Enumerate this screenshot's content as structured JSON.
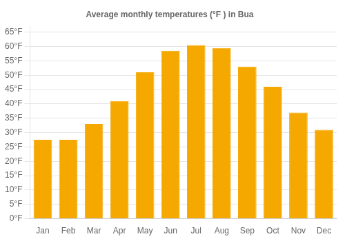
{
  "chart_data": {
    "type": "bar",
    "title": "Average monthly temperatures (°F ) in Bua",
    "categories": [
      "Jan",
      "Feb",
      "Mar",
      "Apr",
      "May",
      "Jun",
      "Jul",
      "Aug",
      "Sep",
      "Oct",
      "Nov",
      "Dec"
    ],
    "values": [
      27.5,
      27.5,
      33,
      41,
      51,
      58.5,
      60.5,
      59.5,
      53,
      46,
      37,
      31
    ],
    "color": "#F5A800",
    "ylim": [
      0,
      67
    ],
    "yticks": [
      {
        "value": 0,
        "label": "0°F"
      },
      {
        "value": 5,
        "label": "5°F"
      },
      {
        "value": 10,
        "label": "10°F"
      },
      {
        "value": 15,
        "label": "15°F"
      },
      {
        "value": 20,
        "label": "20°F"
      },
      {
        "value": 25,
        "label": "25°F"
      },
      {
        "value": 30,
        "label": "30°F"
      },
      {
        "value": 35,
        "label": "35°F"
      },
      {
        "value": 40,
        "label": "40°F"
      },
      {
        "value": 45,
        "label": "45°F"
      },
      {
        "value": 50,
        "label": "50°F"
      },
      {
        "value": 55,
        "label": "55°F"
      },
      {
        "value": 60,
        "label": "60°F"
      },
      {
        "value": 65,
        "label": "65°F"
      }
    ],
    "grid": true
  }
}
